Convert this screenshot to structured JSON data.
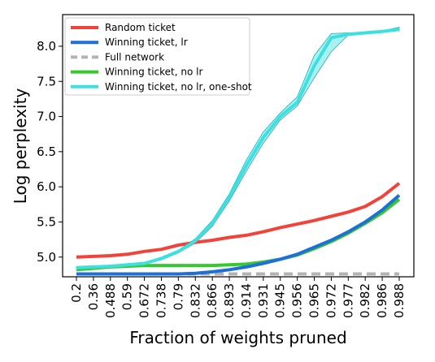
{
  "chart_data": {
    "type": "line",
    "title": "",
    "xlabel": "Fraction of weights pruned",
    "ylabel": "Log perplexity",
    "categories": [
      "0.2",
      "0.36",
      "0.488",
      "0.59",
      "0.672",
      "0.738",
      "0.79",
      "0.832",
      "0.866",
      "0.893",
      "0.914",
      "0.931",
      "0.945",
      "0.956",
      "0.965",
      "0.972",
      "0.977",
      "0.982",
      "0.986",
      "0.988"
    ],
    "y_ticks": [
      "5.0",
      "5.5",
      "6.0",
      "6.5",
      "7.0",
      "7.5",
      "8.0"
    ],
    "ylim": [
      4.72,
      8.45
    ],
    "grid": false,
    "legend_position": "top-left",
    "series": [
      {
        "name": "Random ticket",
        "color": "#f0433a",
        "dashed": false,
        "values": [
          5.0,
          5.01,
          5.02,
          5.04,
          5.08,
          5.11,
          5.17,
          5.21,
          5.24,
          5.28,
          5.31,
          5.36,
          5.42,
          5.47,
          5.52,
          5.58,
          5.64,
          5.72,
          5.86,
          6.05
        ]
      },
      {
        "name": "Winning ticket, lr",
        "color": "#1f6fd8",
        "dashed": false,
        "values": [
          4.76,
          4.76,
          4.76,
          4.76,
          4.76,
          4.76,
          4.76,
          4.77,
          4.79,
          4.82,
          4.86,
          4.91,
          4.97,
          5.04,
          5.14,
          5.24,
          5.36,
          5.5,
          5.67,
          5.88
        ]
      },
      {
        "name": "Full network",
        "color": "#b3b3b3",
        "dashed": true,
        "values": [
          4.76,
          4.76,
          4.76,
          4.76,
          4.76,
          4.76,
          4.76,
          4.76,
          4.76,
          4.76,
          4.76,
          4.76,
          4.76,
          4.76,
          4.76,
          4.76,
          4.76,
          4.76,
          4.76,
          4.76
        ]
      },
      {
        "name": "Winning ticket, no lr",
        "color": "#35c92f",
        "dashed": false,
        "values": [
          4.82,
          4.84,
          4.86,
          4.87,
          4.88,
          4.88,
          4.88,
          4.88,
          4.88,
          4.89,
          4.9,
          4.93,
          4.97,
          5.03,
          5.12,
          5.22,
          5.34,
          5.48,
          5.63,
          5.82
        ]
      },
      {
        "name": "Winning ticket, no lr, one-shot",
        "color": "#3de0e0",
        "dashed": false,
        "values": [
          4.85,
          4.86,
          4.87,
          4.89,
          4.91,
          4.98,
          5.08,
          5.23,
          5.48,
          5.85,
          6.3,
          6.7,
          7.0,
          7.2,
          7.72,
          8.12,
          8.17,
          8.19,
          8.21,
          8.24
        ],
        "band_low": [
          4.84,
          4.85,
          4.86,
          4.88,
          4.9,
          4.96,
          5.06,
          5.2,
          5.44,
          5.8,
          6.22,
          6.62,
          6.95,
          7.15,
          7.55,
          7.92,
          8.16,
          8.18,
          8.2,
          8.22
        ],
        "band_high": [
          4.86,
          4.87,
          4.88,
          4.9,
          4.92,
          5.0,
          5.1,
          5.26,
          5.52,
          5.9,
          6.38,
          6.78,
          7.05,
          7.28,
          7.87,
          8.18,
          8.19,
          8.2,
          8.22,
          8.27
        ]
      }
    ]
  }
}
